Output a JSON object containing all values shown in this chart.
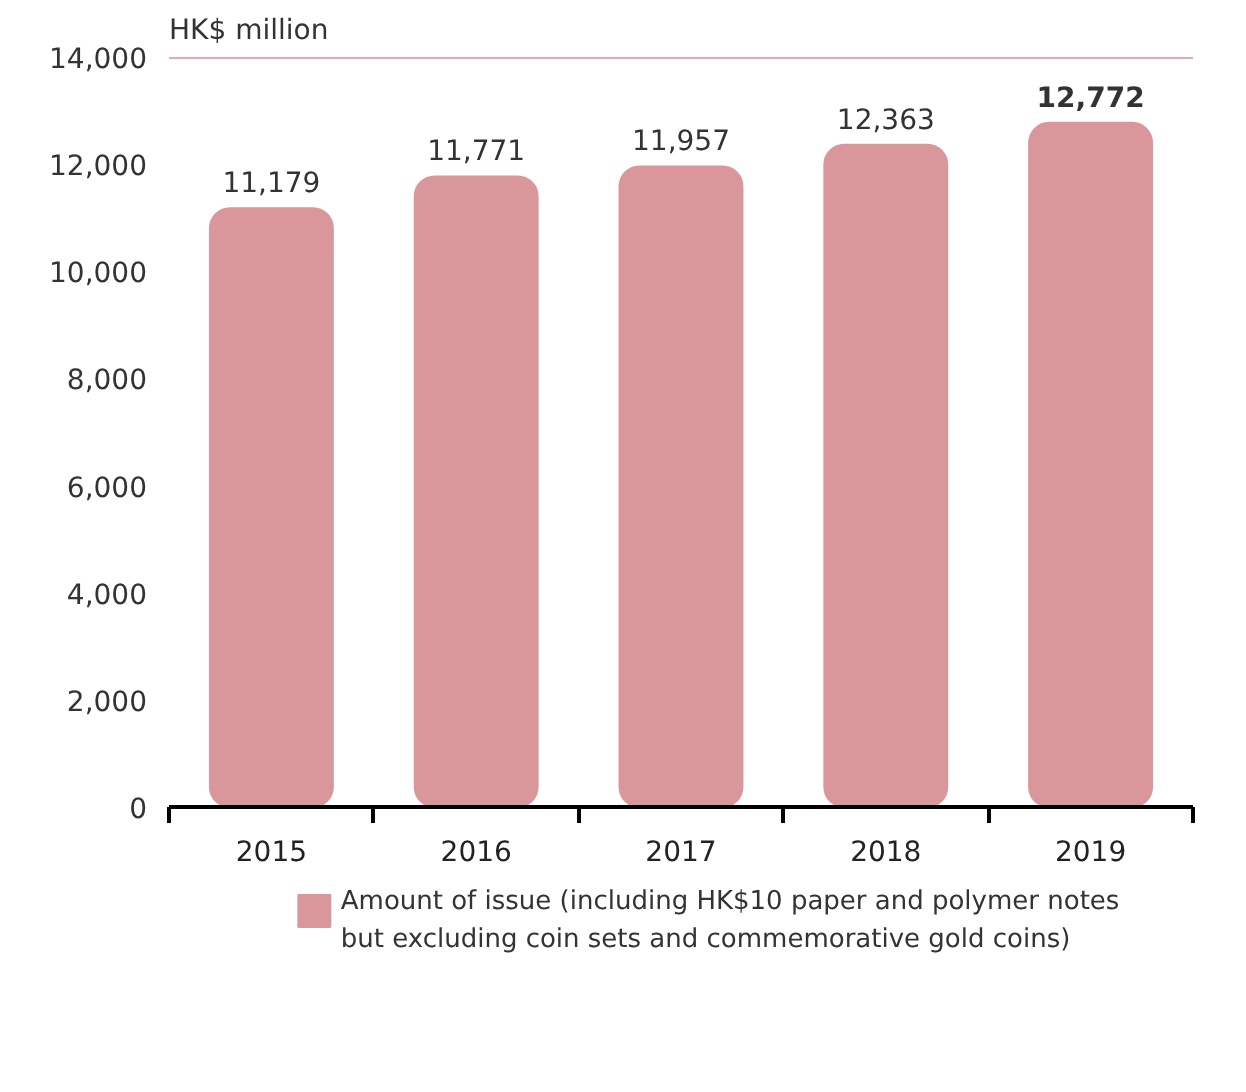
{
  "chart_data": {
    "type": "bar",
    "ylabel": "HK$ million",
    "categories": [
      "2015",
      "2016",
      "2017",
      "2018",
      "2019"
    ],
    "series": [
      {
        "name": "Amount of issue (including HK$10 paper and polymer notes but excluding coin sets and commemorative gold coins)",
        "color": "#d9979c",
        "values": [
          11179,
          11771,
          11957,
          12363,
          12772
        ],
        "value_labels": [
          "11,179",
          "11,771",
          "11,957",
          "12,363",
          "12,772"
        ]
      }
    ],
    "ylim": [
      0,
      14000
    ],
    "yticks": [
      {
        "value": 0,
        "label": "0"
      },
      {
        "value": 2000,
        "label": "2,000"
      },
      {
        "value": 4000,
        "label": "4,000"
      },
      {
        "value": 6000,
        "label": "6,000"
      },
      {
        "value": 8000,
        "label": "8,000"
      },
      {
        "value": 10000,
        "label": "10,000"
      },
      {
        "value": 12000,
        "label": "12,000"
      },
      {
        "value": 14000,
        "label": "14,000"
      }
    ],
    "grid": false,
    "legend": "bottom"
  }
}
